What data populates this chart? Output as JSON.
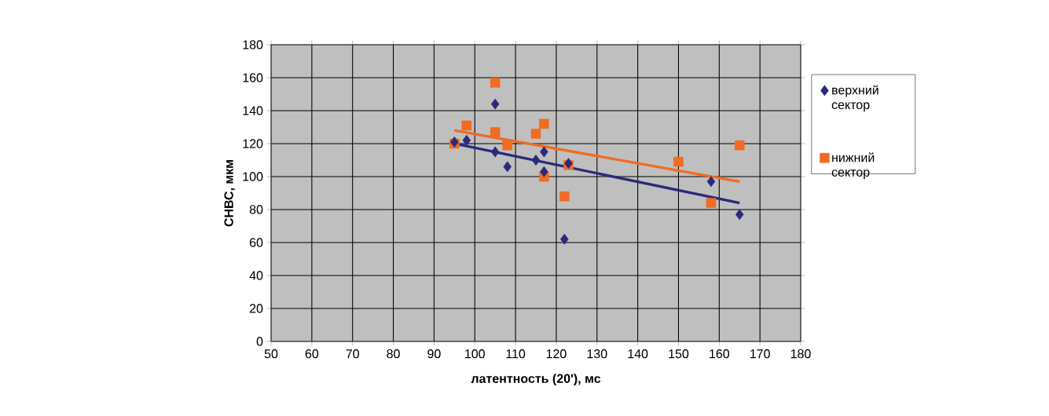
{
  "chart_data": {
    "type": "scatter",
    "xlabel": "латентность (20'), мс",
    "ylabel": "СНВС, мкм",
    "xlim": [
      50,
      180
    ],
    "ylim": [
      0,
      180
    ],
    "xticks": [
      50,
      60,
      70,
      80,
      90,
      100,
      110,
      120,
      130,
      140,
      150,
      160,
      170,
      180
    ],
    "yticks": [
      0,
      20,
      40,
      60,
      80,
      100,
      120,
      140,
      160,
      180
    ],
    "grid": true,
    "legend": "right",
    "series": [
      {
        "name": "верхний сектор",
        "color": "#2b2a7a",
        "marker": "diamond",
        "x": [
          95,
          98,
          105,
          105,
          108,
          115,
          117,
          117,
          122,
          123,
          158,
          165
        ],
        "values": [
          121,
          122,
          144,
          115,
          106,
          110,
          115,
          103,
          62,
          108,
          97,
          77
        ]
      },
      {
        "name": "нижний сектор",
        "color": "#f26b21",
        "marker": "square",
        "x": [
          95,
          98,
          105,
          105,
          108,
          115,
          117,
          117,
          122,
          123,
          150,
          158,
          165
        ],
        "values": [
          120,
          131,
          157,
          127,
          119,
          126,
          132,
          100,
          88,
          107,
          109,
          84,
          119
        ]
      },
      {
        "type": "line",
        "color": "#2b2a7a",
        "marker": "none",
        "x": [
          95,
          165
        ],
        "values": [
          120,
          84
        ]
      },
      {
        "type": "line",
        "color": "#f26b21",
        "marker": "none",
        "x": [
          95,
          165
        ],
        "values": [
          128,
          97
        ]
      }
    ]
  }
}
